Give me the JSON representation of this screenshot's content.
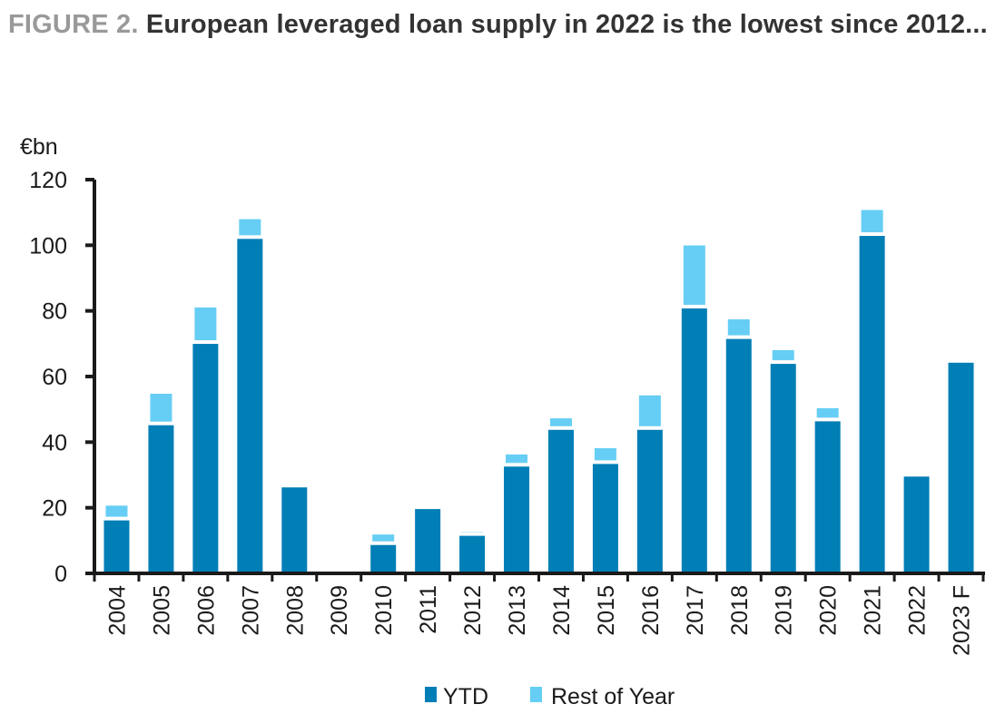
{
  "header": {
    "figure_label": "FIGURE 2.",
    "title": "European leveraged loan supply in 2022 is the lowest since 2012..."
  },
  "chart_data": {
    "type": "bar",
    "stacked": true,
    "title": "European leveraged loan supply in 2022 is the lowest since 2012...",
    "ylabel": "€bn",
    "xlabel": "",
    "ylim": [
      0,
      120
    ],
    "yticks": [
      0,
      20,
      40,
      60,
      80,
      100,
      120
    ],
    "grid": false,
    "legend_position": "bottom",
    "categories": [
      "2004",
      "2005",
      "2006",
      "2007",
      "2008",
      "2009",
      "2010",
      "2011",
      "2012",
      "2013",
      "2014",
      "2015",
      "2016",
      "2017",
      "2018",
      "2019",
      "2020",
      "2021",
      "2022",
      "2023 F"
    ],
    "series": [
      {
        "name": "YTD",
        "color": "#007EB6",
        "values": [
          16.7,
          45.7,
          70.5,
          102.5,
          26.2,
          0,
          9.2,
          19.6,
          12.0,
          33.1,
          44.3,
          33.9,
          44.3,
          81.3,
          72.0,
          64.4,
          46.9,
          103.4,
          29.5,
          64.2
        ]
      },
      {
        "name": "Rest of Year",
        "color": "#66CEF5",
        "values": [
          4.5,
          9.6,
          11.1,
          6.0,
          0,
          0,
          3.2,
          0,
          1.2,
          3.7,
          3.5,
          4.8,
          10.5,
          19.2,
          6.0,
          4.2,
          4.0,
          7.9,
          0,
          0
        ]
      }
    ]
  }
}
